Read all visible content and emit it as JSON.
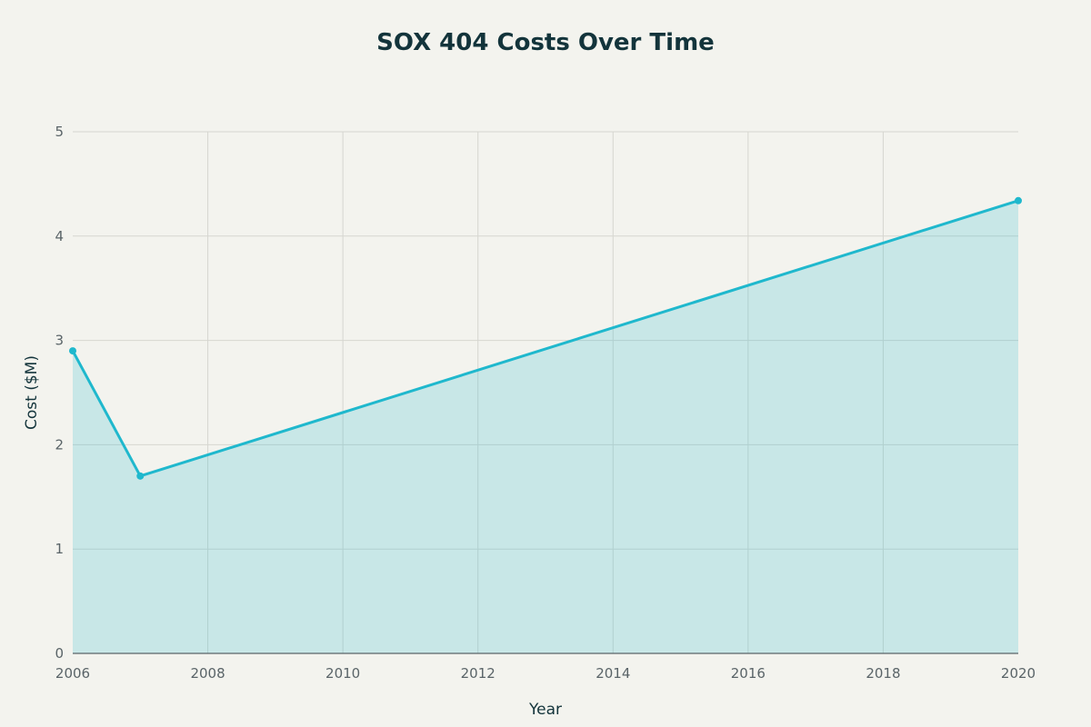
{
  "chart_data": {
    "type": "area",
    "title": "SOX 404 Costs Over Time",
    "xlabel": "Year",
    "ylabel": "Cost ($M)",
    "x": [
      2006,
      2007,
      2020
    ],
    "series": [
      {
        "values": [
          2.9,
          1.7,
          4.34
        ]
      }
    ],
    "xlim": [
      2006,
      2020
    ],
    "ylim": [
      0,
      5
    ],
    "xticks": [
      2006,
      2008,
      2010,
      2012,
      2014,
      2016,
      2018,
      2020
    ],
    "yticks": [
      0,
      1,
      2,
      3,
      4,
      5
    ],
    "grid": true,
    "legend": "none",
    "colors": {
      "line": "#1fb8cd",
      "fill": "#c8e8e9",
      "background": "#f3f3ee",
      "title": "#13343b"
    }
  }
}
